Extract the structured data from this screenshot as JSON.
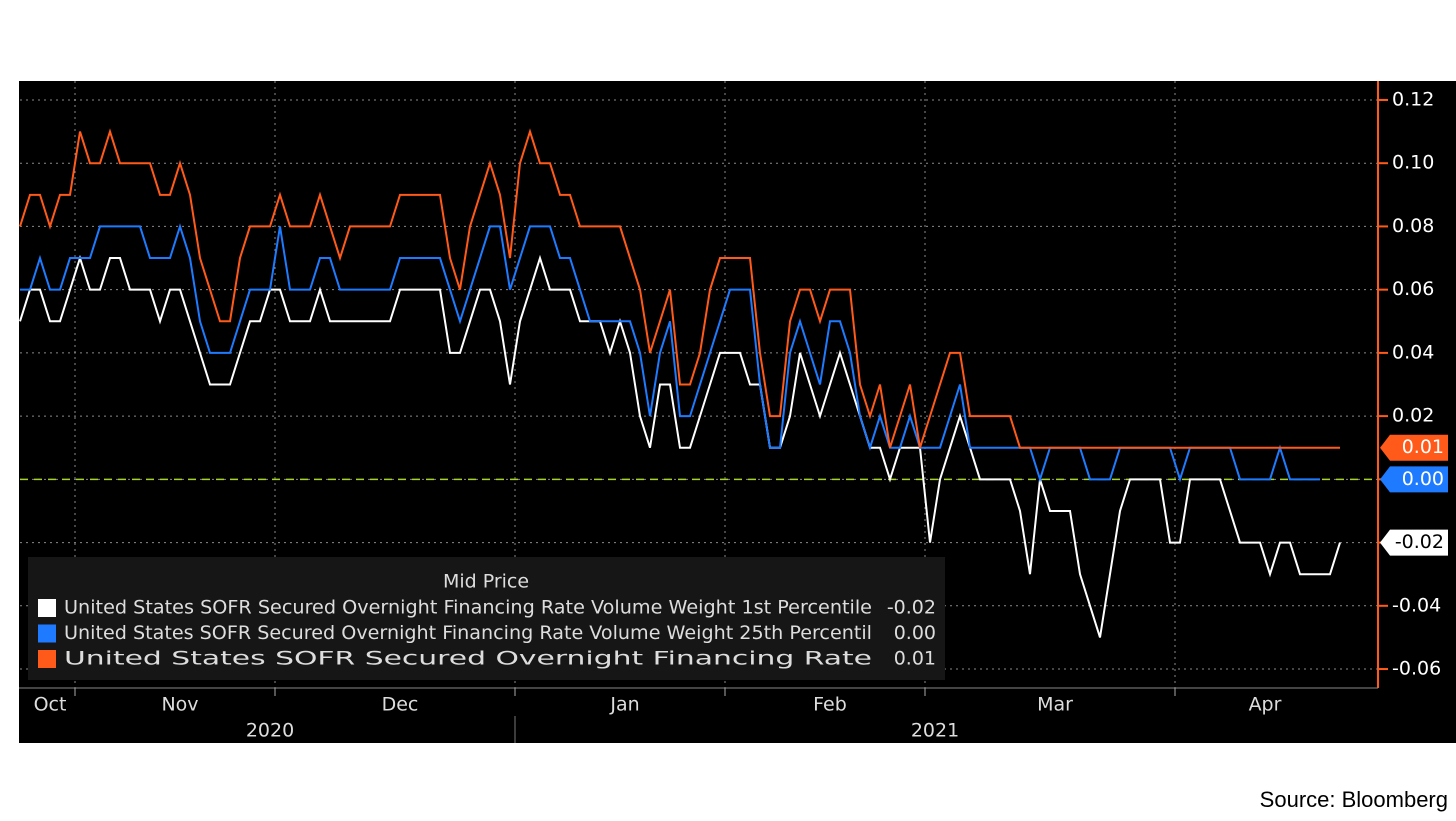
{
  "chart_data": {
    "type": "line",
    "categories": [
      "Oct",
      null,
      null,
      null,
      null,
      null,
      "Nov",
      null,
      null,
      null,
      null,
      null,
      null,
      null,
      null,
      null,
      null,
      null,
      null,
      null,
      null,
      null,
      null,
      null,
      null,
      null,
      "Dec",
      null,
      null,
      null,
      null,
      null,
      null,
      null,
      null,
      null,
      null,
      null,
      null,
      null,
      null,
      null,
      null,
      null,
      null,
      null,
      null,
      null,
      null,
      null,
      "Jan",
      null,
      null,
      null,
      null,
      null,
      null,
      null,
      null,
      null,
      null,
      null,
      null,
      null,
      null,
      null,
      null,
      null,
      null,
      null,
      null,
      "Feb",
      null,
      null,
      null,
      null,
      null,
      null,
      null,
      null,
      null,
      null,
      null,
      null,
      null,
      null,
      null,
      null,
      null,
      null,
      null,
      "Mar",
      null,
      null,
      null,
      null,
      null,
      null,
      null,
      null,
      null,
      null,
      null,
      null,
      null,
      null,
      null,
      null,
      null,
      null,
      null,
      null,
      null,
      null,
      null,
      null,
      "Apr",
      null,
      null,
      null,
      null,
      null,
      null,
      null,
      null,
      null,
      null,
      null,
      null,
      null,
      null,
      null,
      null
    ],
    "year_categories": [
      "2020",
      null,
      null,
      null,
      null,
      null,
      null,
      null,
      null,
      null,
      null,
      null,
      null,
      null,
      null,
      null,
      null,
      null,
      null,
      null,
      null,
      null,
      null,
      null,
      null,
      null,
      null,
      null,
      null,
      null,
      null,
      null,
      null,
      null,
      null,
      null,
      null,
      null,
      null,
      null,
      null,
      null,
      null,
      null,
      null,
      null,
      null,
      null,
      null,
      null,
      "2021",
      null,
      null,
      null,
      null,
      null,
      null,
      null,
      null,
      null,
      null,
      null,
      null,
      null,
      null,
      null,
      null,
      null,
      null,
      null,
      null,
      null,
      null,
      null,
      null,
      null,
      null,
      null,
      null,
      null,
      null,
      null,
      null,
      null,
      null,
      null,
      null,
      null,
      null,
      null,
      null,
      null,
      null,
      null,
      null,
      null,
      null,
      null,
      null,
      null,
      null,
      null,
      null,
      null,
      null,
      null,
      null,
      null,
      null,
      null,
      null,
      null,
      null,
      null,
      null,
      null,
      null,
      null,
      null,
      null,
      null,
      null,
      null,
      null,
      null,
      null,
      null,
      null,
      null,
      null,
      null,
      null,
      null
    ],
    "legend_title": "Mid Price",
    "series": [
      {
        "name": "United States SOFR Secured Overnight Financing Rate Volume Weight 1st Percentile",
        "color": "#ffffff",
        "last_label": "-0.02",
        "values": [
          0.05,
          0.06,
          0.06,
          0.05,
          0.05,
          0.06,
          0.07,
          0.06,
          0.06,
          0.07,
          0.07,
          0.06,
          0.06,
          0.06,
          0.05,
          0.06,
          0.06,
          0.05,
          0.04,
          0.03,
          0.03,
          0.03,
          0.04,
          0.05,
          0.05,
          0.06,
          0.06,
          0.05,
          0.05,
          0.05,
          0.06,
          0.05,
          0.05,
          0.05,
          0.05,
          0.05,
          0.05,
          0.05,
          0.06,
          0.06,
          0.06,
          0.06,
          0.06,
          0.04,
          0.04,
          0.05,
          0.06,
          0.06,
          0.05,
          0.03,
          0.05,
          0.06,
          0.07,
          0.06,
          0.06,
          0.06,
          0.05,
          0.05,
          0.05,
          0.04,
          0.05,
          0.04,
          0.02,
          0.01,
          0.03,
          0.03,
          0.01,
          0.01,
          0.02,
          0.03,
          0.04,
          0.04,
          0.04,
          0.03,
          0.03,
          0.01,
          0.01,
          0.02,
          0.04,
          0.03,
          0.02,
          0.03,
          0.04,
          0.03,
          0.02,
          0.01,
          0.01,
          0,
          0.01,
          0.01,
          0.01,
          -0.02,
          0,
          0.01,
          0.02,
          0.01,
          0,
          0,
          0,
          0,
          -0.01,
          -0.03,
          0,
          -0.01,
          -0.01,
          -0.01,
          -0.03,
          -0.04,
          -0.05,
          -0.03,
          -0.01,
          0,
          0,
          0,
          0,
          -0.02,
          -0.02,
          0,
          0,
          0,
          0,
          -0.01,
          -0.02,
          -0.02,
          -0.02,
          -0.03,
          -0.02,
          -0.02,
          -0.03,
          -0.03,
          -0.03,
          -0.03,
          -0.02
        ]
      },
      {
        "name": "United States SOFR Secured Overnight Financing Rate Volume Weight 25th Percentil",
        "color": "#1e7bff",
        "last_label": "0.00",
        "values": [
          0.06,
          0.06,
          0.07,
          0.06,
          0.06,
          0.07,
          0.07,
          0.07,
          0.08,
          0.08,
          0.08,
          0.08,
          0.08,
          0.07,
          0.07,
          0.07,
          0.08,
          0.07,
          0.05,
          0.04,
          0.04,
          0.04,
          0.05,
          0.06,
          0.06,
          0.06,
          0.08,
          0.06,
          0.06,
          0.06,
          0.07,
          0.07,
          0.06,
          0.06,
          0.06,
          0.06,
          0.06,
          0.06,
          0.07,
          0.07,
          0.07,
          0.07,
          0.07,
          0.06,
          0.05,
          0.06,
          0.07,
          0.08,
          0.08,
          0.06,
          0.07,
          0.08,
          0.08,
          0.08,
          0.07,
          0.07,
          0.06,
          0.05,
          0.05,
          0.05,
          0.05,
          0.05,
          0.04,
          0.02,
          0.04,
          0.05,
          0.02,
          0.02,
          0.03,
          0.04,
          0.05,
          0.06,
          0.06,
          0.06,
          0.03,
          0.01,
          0.01,
          0.04,
          0.05,
          0.04,
          0.03,
          0.05,
          0.05,
          0.04,
          0.02,
          0.01,
          0.02,
          0.01,
          0.01,
          0.02,
          0.01,
          0.01,
          0.01,
          0.02,
          0.03,
          0.01,
          0.01,
          0.01,
          0.01,
          0.01,
          0.01,
          0.01,
          0,
          0.01,
          0.01,
          0.01,
          0.01,
          0,
          0,
          0,
          0.01,
          0.01,
          0.01,
          0.01,
          0.01,
          0.01,
          0,
          0.01,
          0.01,
          0.01,
          0.01,
          0.01,
          0,
          0,
          0,
          0,
          0.01,
          0,
          0,
          0,
          0,
          null,
          null
        ]
      },
      {
        "name": "United States SOFR Secured Overnight Financing Rate",
        "color": "#ff5a1a",
        "last_label": "0.01",
        "values": [
          0.08,
          0.09,
          0.09,
          0.08,
          0.09,
          0.09,
          0.11,
          0.1,
          0.1,
          0.11,
          0.1,
          0.1,
          0.1,
          0.1,
          0.09,
          0.09,
          0.1,
          0.09,
          0.07,
          0.06,
          0.05,
          0.05,
          0.07,
          0.08,
          0.08,
          0.08,
          0.09,
          0.08,
          0.08,
          0.08,
          0.09,
          0.08,
          0.07,
          0.08,
          0.08,
          0.08,
          0.08,
          0.08,
          0.09,
          0.09,
          0.09,
          0.09,
          0.09,
          0.07,
          0.06,
          0.08,
          0.09,
          0.1,
          0.09,
          0.07,
          0.1,
          0.11,
          0.1,
          0.1,
          0.09,
          0.09,
          0.08,
          0.08,
          0.08,
          0.08,
          0.08,
          0.07,
          0.06,
          0.04,
          0.05,
          0.06,
          0.03,
          0.03,
          0.04,
          0.06,
          0.07,
          0.07,
          0.07,
          0.07,
          0.04,
          0.02,
          0.02,
          0.05,
          0.06,
          0.06,
          0.05,
          0.06,
          0.06,
          0.06,
          0.03,
          0.02,
          0.03,
          0.01,
          0.02,
          0.03,
          0.01,
          0.02,
          0.03,
          0.04,
          0.04,
          0.02,
          0.02,
          0.02,
          0.02,
          0.02,
          0.01,
          0.01,
          0.01,
          0.01,
          0.01,
          0.01,
          0.01,
          0.01,
          0.01,
          0.01,
          0.01,
          0.01,
          0.01,
          0.01,
          0.01,
          0.01,
          0.01,
          0.01,
          0.01,
          0.01,
          0.01,
          0.01,
          0.01,
          0.01,
          0.01,
          0.01,
          0.01,
          0.01,
          0.01,
          0.01,
          0.01,
          0.01,
          0.01
        ]
      }
    ],
    "ylim": [
      -0.066,
      0.126
    ],
    "yticks": [
      -0.06,
      -0.04,
      -0.02,
      {
        "value": 0,
        "label": "0.00"
      },
      0.02,
      0.04,
      0.06,
      0.08,
      {
        "value": 0.1,
        "label": "0.10"
      },
      0.12
    ],
    "grid": true,
    "reference_line": {
      "value": 0,
      "color": "#a6d32a"
    },
    "source": "Source: Bloomberg"
  }
}
